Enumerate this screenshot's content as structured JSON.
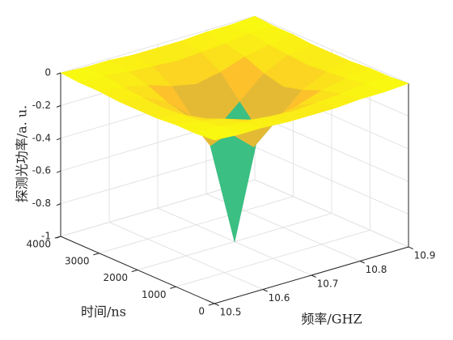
{
  "chart_data": {
    "type": "surface",
    "xlabel": "频率/GHZ",
    "ylabel": "时间/ns",
    "zlabel": "探测光功率/a. u.",
    "x": [
      10.5,
      10.55,
      10.6,
      10.65,
      10.7,
      10.75,
      10.8,
      10.85,
      10.9
    ],
    "y": [
      0,
      500,
      1000,
      1500,
      2000,
      2500,
      3000,
      3500,
      4000
    ],
    "z": [
      [
        0,
        -0.01,
        -0.01,
        -0.02,
        -0.02,
        -0.02,
        -0.01,
        -0.01,
        0
      ],
      [
        -0.01,
        -0.01,
        -0.03,
        -0.04,
        -0.05,
        -0.04,
        -0.03,
        -0.01,
        -0.01
      ],
      [
        -0.01,
        -0.03,
        -0.06,
        -0.11,
        -0.14,
        -0.11,
        -0.06,
        -0.03,
        -0.01
      ],
      [
        -0.02,
        -0.04,
        -0.11,
        -0.24,
        -0.37,
        -0.24,
        -0.11,
        -0.04,
        -0.02
      ],
      [
        -0.02,
        -0.05,
        -0.14,
        -0.37,
        -1,
        -0.37,
        -0.14,
        -0.05,
        -0.02
      ],
      [
        -0.02,
        -0.04,
        -0.11,
        -0.24,
        -0.37,
        -0.24,
        -0.11,
        -0.04,
        -0.02
      ],
      [
        -0.01,
        -0.03,
        -0.06,
        -0.11,
        -0.14,
        -0.11,
        -0.06,
        -0.03,
        -0.01
      ],
      [
        -0.01,
        -0.01,
        -0.03,
        -0.04,
        -0.05,
        -0.04,
        -0.03,
        -0.01,
        -0.01
      ],
      [
        0,
        -0.01,
        -0.01,
        -0.02,
        -0.02,
        -0.02,
        -0.01,
        -0.01,
        0
      ]
    ],
    "xlim": [
      10.5,
      10.9
    ],
    "ylim": [
      0,
      4000
    ],
    "zlim": [
      -1,
      0
    ],
    "xticks": [
      10.5,
      10.6,
      10.7,
      10.8,
      10.9
    ],
    "yticks": [
      0,
      1000,
      2000,
      3000,
      4000
    ],
    "zticks": [
      -1,
      -0.8,
      -0.6,
      -0.4,
      -0.2,
      0
    ],
    "grid": true,
    "colormap": [
      "#3e26a8",
      "#2f5ee9",
      "#1a9ad6",
      "#14b9aa",
      "#5cc562",
      "#cbb93a",
      "#fdbb2f",
      "#f9fb0e"
    ]
  }
}
